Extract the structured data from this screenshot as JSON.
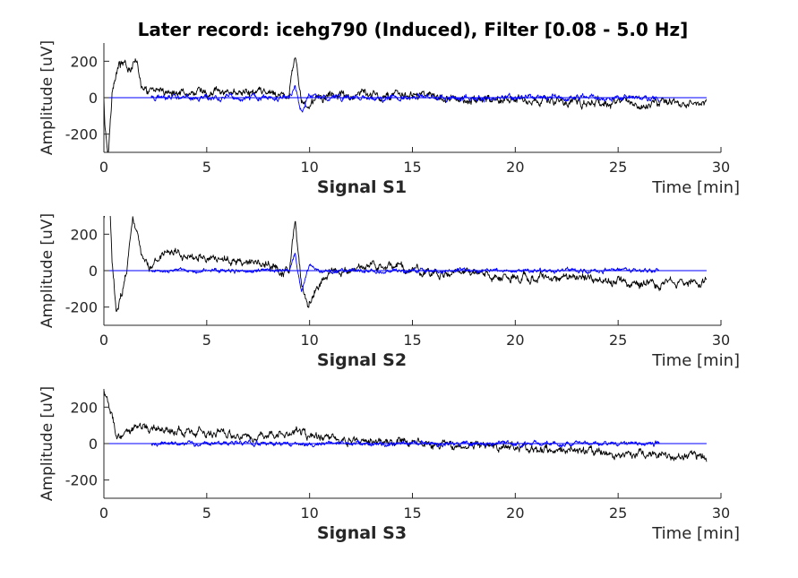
{
  "chart_data": [
    {
      "type": "line",
      "title": "Later record: icehg790 (Induced), Filter [0.08 - 5.0 Hz]",
      "subplot_label": "Signal S1",
      "xlabel": "Time [min]",
      "ylabel": "Amplitude [uV]",
      "xlim": [
        0,
        30
      ],
      "ylim": [
        -300,
        300
      ],
      "xticks": [
        0,
        5,
        10,
        15,
        20,
        25,
        30
      ],
      "yticks": [
        200,
        0,
        -200
      ],
      "colors": {
        "raw": "#000000",
        "filtered": "#0000ff"
      },
      "series": [
        {
          "color": "#000000",
          "span": [
            0,
            29.3
          ],
          "envelope": [
            [
              0,
              0
            ],
            [
              0.05,
              -150
            ],
            [
              0.2,
              -300
            ],
            [
              0.4,
              40
            ],
            [
              0.7,
              170
            ],
            [
              1.0,
              190
            ],
            [
              1.3,
              150
            ],
            [
              1.6,
              230
            ],
            [
              1.8,
              80
            ],
            [
              2.2,
              20
            ],
            [
              3.0,
              40
            ],
            [
              5.0,
              25
            ],
            [
              8.0,
              20
            ],
            [
              9.0,
              10
            ],
            [
              9.3,
              250
            ],
            [
              9.6,
              -30
            ],
            [
              9.9,
              -60
            ],
            [
              10.2,
              -20
            ],
            [
              11,
              10
            ],
            [
              13,
              20
            ],
            [
              15,
              10
            ],
            [
              17,
              -10
            ],
            [
              20,
              -10
            ],
            [
              23,
              -20
            ],
            [
              25,
              -30
            ],
            [
              27,
              -40
            ],
            [
              29.3,
              -25
            ]
          ],
          "noise": 22
        },
        {
          "color": "#0000ff",
          "span": [
            2.3,
            27
          ],
          "baseline_to": 29.3,
          "envelope": [
            [
              2.3,
              0
            ],
            [
              9.0,
              0
            ],
            [
              9.3,
              60
            ],
            [
              9.6,
              -80
            ],
            [
              10.0,
              20
            ],
            [
              10.5,
              0
            ],
            [
              27,
              0
            ]
          ],
          "noise": 14
        }
      ]
    },
    {
      "type": "line",
      "subplot_label": "Signal S2",
      "xlabel": "Time [min]",
      "ylabel": "Amplitude [uV]",
      "xlim": [
        0,
        30
      ],
      "ylim": [
        -300,
        300
      ],
      "xticks": [
        0,
        5,
        10,
        15,
        20,
        25,
        30
      ],
      "yticks": [
        200,
        0,
        -200
      ],
      "colors": {
        "raw": "#000000",
        "filtered": "#0000ff"
      },
      "series": [
        {
          "color": "#000000",
          "span": [
            0,
            29.3
          ],
          "envelope": [
            [
              0,
              300
            ],
            [
              0.3,
              300
            ],
            [
              0.4,
              50
            ],
            [
              0.6,
              -200
            ],
            [
              0.9,
              -100
            ],
            [
              1.1,
              10
            ],
            [
              1.4,
              300
            ],
            [
              1.8,
              100
            ],
            [
              2.2,
              20
            ],
            [
              3.0,
              110
            ],
            [
              4.5,
              80
            ],
            [
              6.0,
              60
            ],
            [
              8.0,
              30
            ],
            [
              9.0,
              0
            ],
            [
              9.3,
              280
            ],
            [
              9.6,
              -60
            ],
            [
              9.9,
              -180
            ],
            [
              10.3,
              -100
            ],
            [
              11,
              -20
            ],
            [
              13,
              30
            ],
            [
              15,
              10
            ],
            [
              17,
              -20
            ],
            [
              20,
              -30
            ],
            [
              23,
              -40
            ],
            [
              25,
              -60
            ],
            [
              27,
              -70
            ],
            [
              29.3,
              -60
            ]
          ],
          "noise": 22
        },
        {
          "color": "#0000ff",
          "span": [
            2.3,
            27
          ],
          "baseline_to": 29.3,
          "envelope": [
            [
              2.3,
              0
            ],
            [
              9.0,
              0
            ],
            [
              9.3,
              90
            ],
            [
              9.6,
              -120
            ],
            [
              10.0,
              30
            ],
            [
              10.5,
              0
            ],
            [
              27,
              0
            ]
          ],
          "noise": 10
        }
      ]
    },
    {
      "type": "line",
      "subplot_label": "Signal S3",
      "xlabel": "Time [min]",
      "ylabel": "Amplitude [uV]",
      "xlim": [
        0,
        30
      ],
      "ylim": [
        -300,
        300
      ],
      "xticks": [
        0,
        5,
        10,
        15,
        20,
        25,
        30
      ],
      "yticks": [
        200,
        0,
        -200
      ],
      "colors": {
        "raw": "#000000",
        "filtered": "#0000ff"
      },
      "series": [
        {
          "color": "#000000",
          "span": [
            0,
            29.3
          ],
          "envelope": [
            [
              0,
              290
            ],
            [
              0.2,
              220
            ],
            [
              0.4,
              150
            ],
            [
              0.6,
              30
            ],
            [
              1.0,
              20
            ],
            [
              1.5,
              100
            ],
            [
              3.0,
              70
            ],
            [
              5.0,
              60
            ],
            [
              8.0,
              40
            ],
            [
              9.5,
              70
            ],
            [
              10.0,
              30
            ],
            [
              12,
              10
            ],
            [
              15,
              0
            ],
            [
              17,
              -10
            ],
            [
              20,
              -20
            ],
            [
              23,
              -40
            ],
            [
              25,
              -60
            ],
            [
              27,
              -60
            ],
            [
              29.3,
              -70
            ]
          ],
          "noise": 22
        },
        {
          "color": "#0000ff",
          "span": [
            2.3,
            27
          ],
          "baseline_to": 29.3,
          "envelope": [
            [
              2.3,
              0
            ],
            [
              27,
              0
            ]
          ],
          "noise": 12
        }
      ]
    }
  ]
}
